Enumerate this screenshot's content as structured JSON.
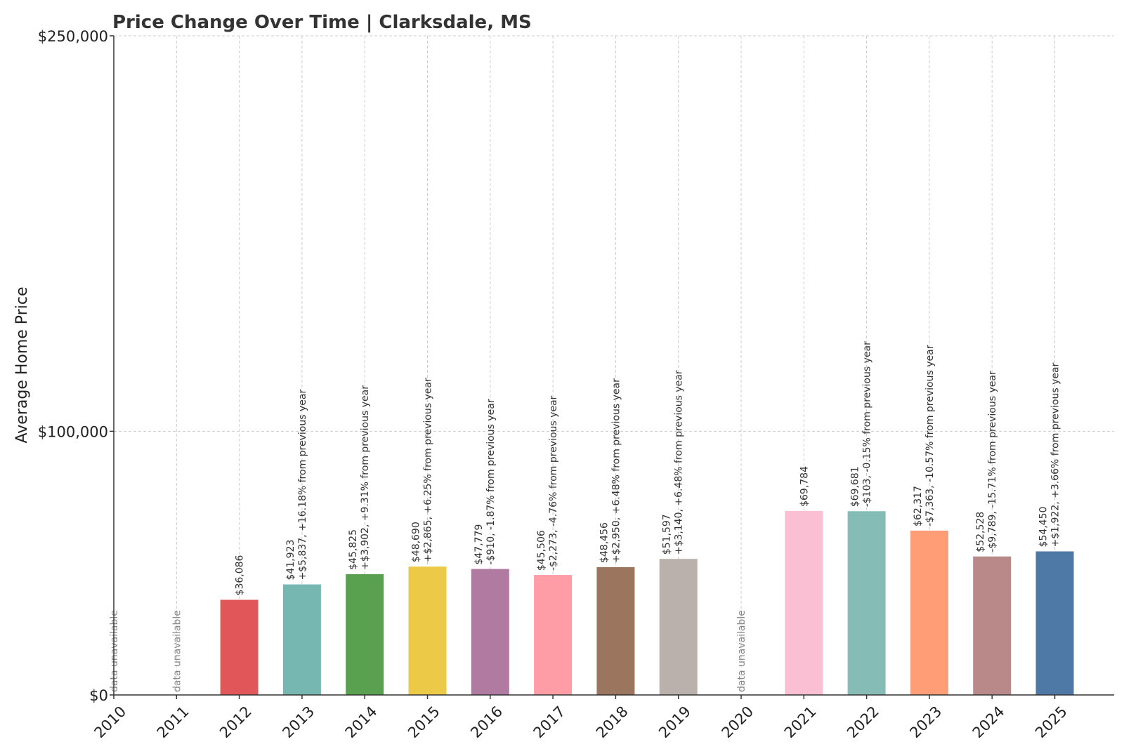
{
  "chart_data": {
    "type": "bar",
    "title": "Price Change Over Time | Clarksdale, MS",
    "xlabel": "",
    "ylabel": "Average Home Price",
    "ylim": [
      0,
      250000
    ],
    "y_ticks": [
      {
        "value": 0,
        "label": "$0"
      },
      {
        "value": 100000,
        "label": "$100,000"
      },
      {
        "value": 250000,
        "label": "$250,000"
      }
    ],
    "grid": true,
    "categories": [
      "2010",
      "2011",
      "2012",
      "2013",
      "2014",
      "2015",
      "2016",
      "2017",
      "2018",
      "2019",
      "2020",
      "2021",
      "2022",
      "2023",
      "2024",
      "2025"
    ],
    "values": [
      null,
      null,
      36086,
      41923,
      45825,
      48690,
      47779,
      45506,
      48456,
      51597,
      null,
      69784,
      69681,
      62317,
      52528,
      54450
    ],
    "price_labels": [
      "",
      "",
      "$36,086",
      "$41,923",
      "$45,825",
      "$48,690",
      "$47,779",
      "$45,506",
      "$48,456",
      "$51,597",
      "",
      "$69,784",
      "$69,681",
      "$62,317",
      "$52,528",
      "$54,450"
    ],
    "change_labels": [
      "",
      "",
      "",
      "+$5,837, +16.18% from previous year",
      "+$3,902, +9.31% from previous year",
      "+$2,865, +6.25% from previous year",
      "-$910, -1.87% from previous year",
      "-$2,273, -4.76% from previous year",
      "+$2,950, +6.48% from previous year",
      "+$3,140, +6.48% from previous year",
      "",
      "",
      "-$103, -0.15% from previous year",
      "-$7,363, -10.57% from previous year",
      "-$9,789, -15.71% from previous year",
      "+$1,922, +3.66% from previous year"
    ],
    "unavailable_label": "data unavailable",
    "colors": [
      "#e15759",
      "#e15759",
      "#e15759",
      "#76b7b2",
      "#59a14f",
      "#edc948",
      "#b07aa1",
      "#ff9da7",
      "#9c755f",
      "#bab0ac",
      "#bab0ac",
      "#fabfd2",
      "#86bcb6",
      "#ff9d76",
      "#b9898a",
      "#4e79a7"
    ]
  }
}
